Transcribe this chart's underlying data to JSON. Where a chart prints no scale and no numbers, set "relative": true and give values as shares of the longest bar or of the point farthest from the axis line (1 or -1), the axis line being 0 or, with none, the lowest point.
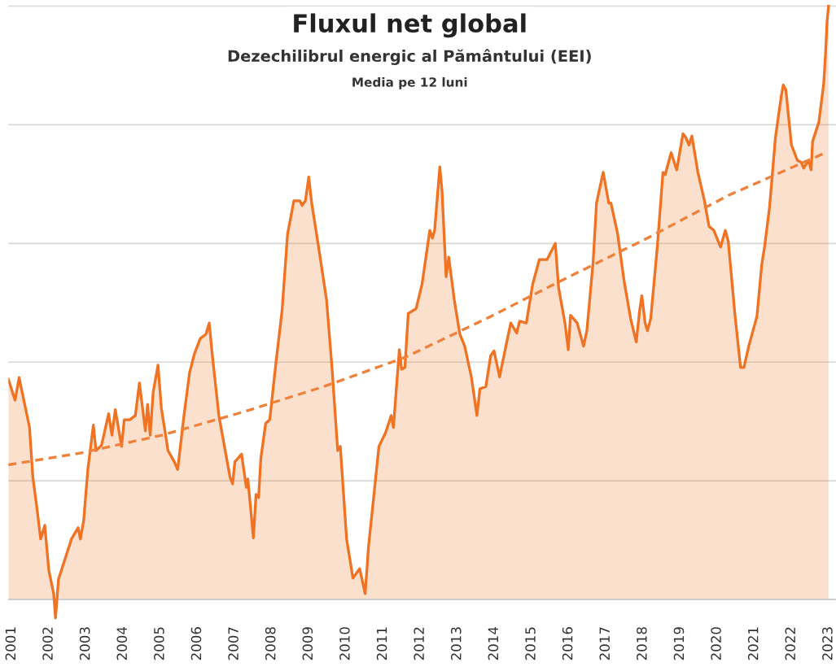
{
  "chart_data": {
    "type": "line",
    "title": "Fluxul net global",
    "subtitle": "Dezechilibrul energic al Pământului (EEI)",
    "annotations": [
      "Media pe 12 luni"
    ],
    "relative": true,
    "grid": "y",
    "xlim": [
      2000.91,
      2023.2
    ],
    "xticks": [
      2001,
      2002,
      2003,
      2004,
      2005,
      2006,
      2007,
      2008,
      2009,
      2010,
      2011,
      2012,
      2013,
      2014,
      2015,
      2016,
      2017,
      2018,
      2019,
      2020,
      2021,
      2022,
      2023
    ],
    "x": [
      2000.91,
      2001.09,
      2001.2,
      2001.35,
      2001.48,
      2001.57,
      2001.68,
      2001.78,
      2001.89,
      2002.0,
      2002.13,
      2002.18,
      2002.26,
      2002.44,
      2002.61,
      2002.79,
      2002.85,
      2002.94,
      2003.05,
      2003.2,
      2003.27,
      2003.42,
      2003.61,
      2003.7,
      2003.79,
      2003.96,
      2004.03,
      2004.18,
      2004.33,
      2004.44,
      2004.6,
      2004.66,
      2004.73,
      2004.81,
      2004.94,
      2005.03,
      2005.21,
      2005.38,
      2005.47,
      2005.64,
      2005.79,
      2005.92,
      2006.08,
      2006.23,
      2006.32,
      2006.4,
      2006.58,
      2006.73,
      2006.88,
      2006.95,
      2007.01,
      2007.19,
      2007.32,
      2007.36,
      2007.51,
      2007.58,
      2007.65,
      2007.71,
      2007.84,
      2007.95,
      2008.12,
      2008.28,
      2008.43,
      2008.6,
      2008.76,
      2008.82,
      2008.91,
      2009.0,
      2009.08,
      2009.26,
      2009.48,
      2009.63,
      2009.78,
      2009.85,
      2010.02,
      2010.19,
      2010.37,
      2010.52,
      2010.61,
      2010.74,
      2010.89,
      2011.07,
      2011.22,
      2011.28,
      2011.44,
      2011.5,
      2011.59,
      2011.68,
      2011.89,
      2012.05,
      2012.2,
      2012.26,
      2012.33,
      2012.39,
      2012.53,
      2012.59,
      2012.7,
      2012.77,
      2012.92,
      2013.07,
      2013.2,
      2013.38,
      2013.53,
      2013.61,
      2013.77,
      2013.9,
      2013.99,
      2014.14,
      2014.29,
      2014.44,
      2014.6,
      2014.68,
      2014.86,
      2015.03,
      2015.21,
      2015.42,
      2015.64,
      2015.73,
      2015.9,
      2015.99,
      2016.05,
      2016.23,
      2016.4,
      2016.49,
      2016.66,
      2016.75,
      2016.93,
      2017.08,
      2017.14,
      2017.32,
      2017.49,
      2017.67,
      2017.82,
      2017.91,
      2017.97,
      2018.06,
      2018.12,
      2018.21,
      2018.39,
      2018.54,
      2018.6,
      2018.76,
      2018.91,
      2019.08,
      2019.15,
      2019.24,
      2019.32,
      2019.48,
      2019.65,
      2019.78,
      2019.91,
      2020.09,
      2020.22,
      2020.3,
      2020.48,
      2020.63,
      2020.72,
      2020.85,
      2021.07,
      2021.2,
      2021.28,
      2021.41,
      2021.57,
      2021.72,
      2021.78,
      2021.85,
      2022.0,
      2022.16,
      2022.26,
      2022.33,
      2022.46,
      2022.53,
      2022.57,
      2022.74,
      2022.87,
      2022.92,
      2022.96,
      2023.0
    ],
    "series": [
      {
        "type": "area",
        "color": "#ef7322",
        "values": [
          0.371,
          0.336,
          0.374,
          0.329,
          0.29,
          0.206,
          0.154,
          0.102,
          0.125,
          0.049,
          0.01,
          -0.031,
          0.034,
          0.069,
          0.102,
          0.121,
          0.102,
          0.134,
          0.219,
          0.294,
          0.251,
          0.26,
          0.313,
          0.277,
          0.32,
          0.258,
          0.303,
          0.303,
          0.31,
          0.365,
          0.284,
          0.329,
          0.277,
          0.349,
          0.395,
          0.323,
          0.251,
          0.232,
          0.219,
          0.31,
          0.382,
          0.414,
          0.44,
          0.447,
          0.466,
          0.414,
          0.31,
          0.258,
          0.206,
          0.195,
          0.232,
          0.245,
          0.189,
          0.203,
          0.104,
          0.177,
          0.172,
          0.238,
          0.297,
          0.303,
          0.401,
          0.486,
          0.616,
          0.672,
          0.672,
          0.664,
          0.672,
          0.712,
          0.668,
          0.596,
          0.505,
          0.388,
          0.251,
          0.258,
          0.102,
          0.036,
          0.052,
          0.01,
          0.089,
          0.167,
          0.258,
          0.281,
          0.31,
          0.29,
          0.421,
          0.388,
          0.391,
          0.482,
          0.49,
          0.531,
          0.596,
          0.622,
          0.609,
          0.622,
          0.729,
          0.688,
          0.544,
          0.577,
          0.505,
          0.447,
          0.427,
          0.375,
          0.31,
          0.355,
          0.359,
          0.411,
          0.419,
          0.375,
          0.421,
          0.466,
          0.449,
          0.469,
          0.466,
          0.531,
          0.573,
          0.573,
          0.6,
          0.525,
          0.466,
          0.421,
          0.479,
          0.466,
          0.427,
          0.453,
          0.57,
          0.668,
          0.72,
          0.668,
          0.668,
          0.616,
          0.538,
          0.473,
          0.434,
          0.486,
          0.512,
          0.466,
          0.453,
          0.473,
          0.596,
          0.72,
          0.716,
          0.753,
          0.724,
          0.785,
          0.779,
          0.766,
          0.781,
          0.72,
          0.674,
          0.629,
          0.622,
          0.594,
          0.622,
          0.603,
          0.479,
          0.391,
          0.391,
          0.427,
          0.477,
          0.564,
          0.596,
          0.661,
          0.779,
          0.846,
          0.867,
          0.859,
          0.766,
          0.74,
          0.737,
          0.727,
          0.74,
          0.724,
          0.772,
          0.805,
          0.87,
          0.922,
          0.974,
          1.0
        ]
      },
      {
        "color": "#f0813a",
        "line_style": "dashed",
        "x": [
          2000.91,
          2002.87,
          2005.05,
          2007.23,
          2009.41,
          2011.59,
          2013.77,
          2015.95,
          2018.12,
          2020.3,
          2022.92
        ],
        "values": [
          0.227,
          0.247,
          0.277,
          0.316,
          0.359,
          0.408,
          0.473,
          0.542,
          0.609,
          0.681,
          0.753
        ]
      }
    ]
  }
}
